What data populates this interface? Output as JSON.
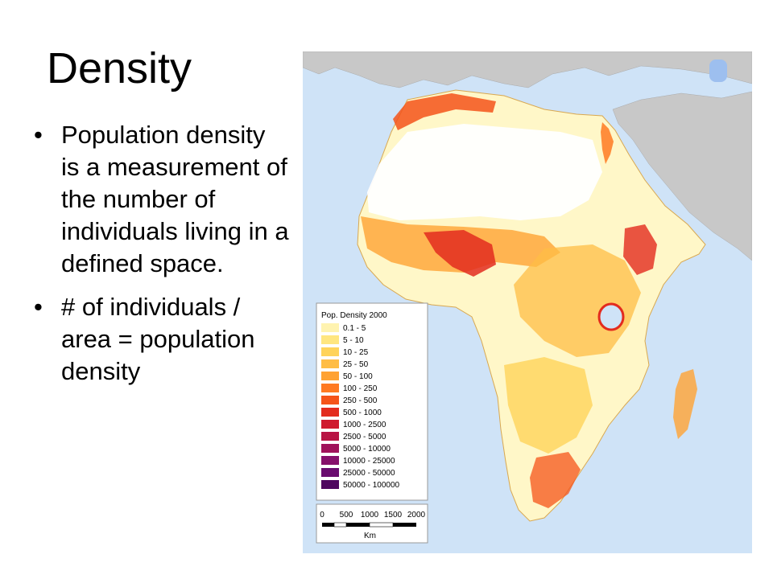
{
  "slide": {
    "title": "Density",
    "bullets": [
      "Population density is a measurement of the number of individuals living in a defined space.",
      "# of individuals / area = population density"
    ]
  },
  "map": {
    "legend_title": "Pop. Density 2000",
    "legend": [
      {
        "label": "0.1 - 5",
        "color": "#fff3b0"
      },
      {
        "label": "5 - 10",
        "color": "#ffe680"
      },
      {
        "label": "10 - 25",
        "color": "#ffd35a"
      },
      {
        "label": "25 - 50",
        "color": "#ffbd45"
      },
      {
        "label": "50 - 100",
        "color": "#ffa233"
      },
      {
        "label": "100 - 250",
        "color": "#ff7a22"
      },
      {
        "label": "250 - 500",
        "color": "#f5541a"
      },
      {
        "label": "500 - 1000",
        "color": "#e32b1e"
      },
      {
        "label": "1000 - 2500",
        "color": "#cf1a2e"
      },
      {
        "label": "2500 - 5000",
        "color": "#b81444"
      },
      {
        "label": "5000 - 10000",
        "color": "#a0125a"
      },
      {
        "label": "10000 - 25000",
        "color": "#86106b"
      },
      {
        "label": "25000 - 50000",
        "color": "#6a0c6f"
      },
      {
        "label": "50000 - 100000",
        "color": "#4f075f"
      }
    ],
    "scale": {
      "ticks": [
        "0",
        "500",
        "1000",
        "1500",
        "2000"
      ],
      "unit": "Km"
    },
    "colors": {
      "ocean": "#cfe3f7",
      "land_other": "#c8c8c8",
      "africa_base": "#fff7c8",
      "sparse": "#ffffff",
      "border": "#8a8a8a"
    }
  }
}
